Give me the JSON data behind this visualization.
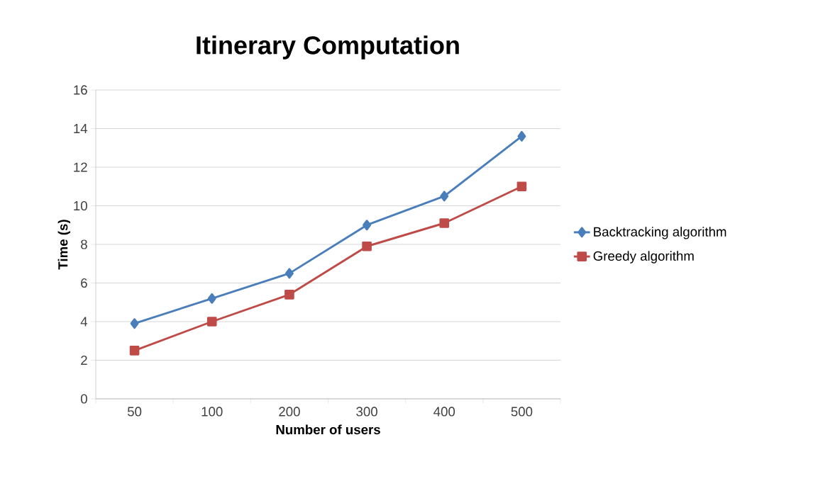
{
  "chart_data": {
    "type": "line",
    "title": "Itinerary Computation",
    "xlabel": "Number of users",
    "ylabel": "Time (s)",
    "categories": [
      "50",
      "100",
      "200",
      "300",
      "400",
      "500"
    ],
    "series": [
      {
        "name": "Backtracking algorithm",
        "color": "#4a7ebb",
        "marker": "diamond",
        "values": [
          3.9,
          5.2,
          6.5,
          9.0,
          10.5,
          13.6
        ]
      },
      {
        "name": "Greedy algorithm",
        "color": "#be4b48",
        "marker": "square",
        "values": [
          2.5,
          4.0,
          5.4,
          7.9,
          9.1,
          11.0
        ]
      }
    ],
    "ylim": [
      0,
      16
    ],
    "yticks": [
      0,
      2,
      4,
      6,
      8,
      10,
      12,
      14,
      16
    ],
    "grid": "y",
    "legend": "right",
    "line_style": "solid"
  }
}
